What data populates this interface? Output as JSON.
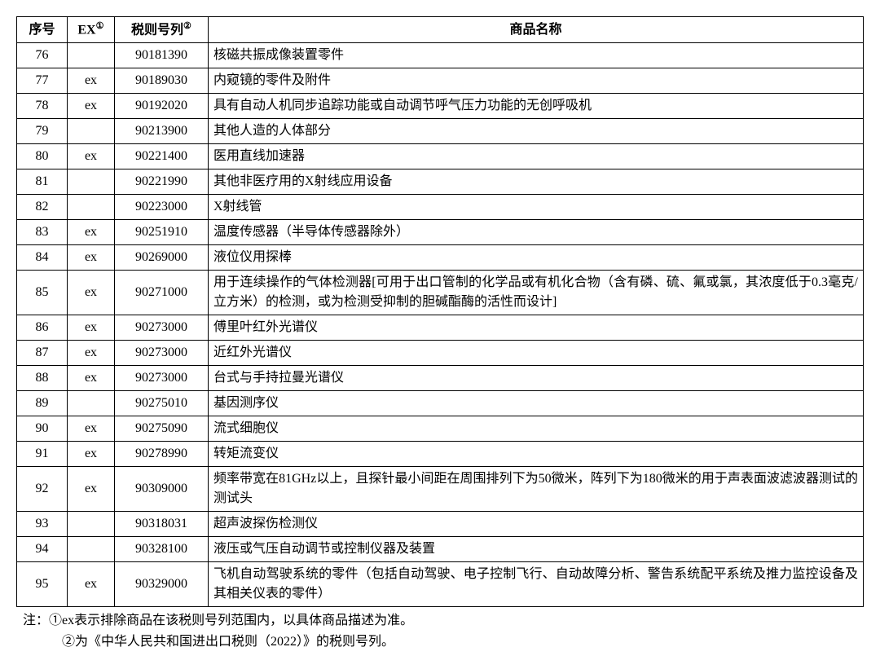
{
  "table": {
    "headers": {
      "seq": "序号",
      "ex": "EX",
      "ex_sup": "①",
      "code": "税则号列",
      "code_sup": "②",
      "name": "商品名称"
    },
    "columns": {
      "seq_width": 62,
      "ex_width": 58,
      "code_width": 115
    },
    "rows": [
      {
        "seq": "76",
        "ex": "",
        "code": "90181390",
        "name": "核磁共振成像装置零件"
      },
      {
        "seq": "77",
        "ex": "ex",
        "code": "90189030",
        "name": "内窥镜的零件及附件"
      },
      {
        "seq": "78",
        "ex": "ex",
        "code": "90192020",
        "name": "具有自动人机同步追踪功能或自动调节呼气压力功能的无创呼吸机"
      },
      {
        "seq": "79",
        "ex": "",
        "code": "90213900",
        "name": "其他人造的人体部分"
      },
      {
        "seq": "80",
        "ex": "ex",
        "code": "90221400",
        "name": "医用直线加速器"
      },
      {
        "seq": "81",
        "ex": "",
        "code": "90221990",
        "name": "其他非医疗用的X射线应用设备"
      },
      {
        "seq": "82",
        "ex": "",
        "code": "90223000",
        "name": "X射线管"
      },
      {
        "seq": "83",
        "ex": "ex",
        "code": "90251910",
        "name": "温度传感器（半导体传感器除外）"
      },
      {
        "seq": "84",
        "ex": "ex",
        "code": "90269000",
        "name": "液位仪用探棒"
      },
      {
        "seq": "85",
        "ex": "ex",
        "code": "90271000",
        "name": "用于连续操作的气体检测器[可用于出口管制的化学品或有机化合物（含有磷、硫、氟或氯，其浓度低于0.3毫克/立方米）的检测，或为检测受抑制的胆碱酯酶的活性而设计]"
      },
      {
        "seq": "86",
        "ex": "ex",
        "code": "90273000",
        "name": "傅里叶红外光谱仪"
      },
      {
        "seq": "87",
        "ex": "ex",
        "code": "90273000",
        "name": "近红外光谱仪"
      },
      {
        "seq": "88",
        "ex": "ex",
        "code": "90273000",
        "name": "台式与手持拉曼光谱仪"
      },
      {
        "seq": "89",
        "ex": "",
        "code": "90275010",
        "name": "基因测序仪"
      },
      {
        "seq": "90",
        "ex": "ex",
        "code": "90275090",
        "name": "流式细胞仪"
      },
      {
        "seq": "91",
        "ex": "ex",
        "code": "90278990",
        "name": "转矩流变仪"
      },
      {
        "seq": "92",
        "ex": "ex",
        "code": "90309000",
        "name": "频率带宽在81GHz以上，且探针最小间距在周围排列下为50微米，阵列下为180微米的用于声表面波滤波器测试的测试头"
      },
      {
        "seq": "93",
        "ex": "",
        "code": "90318031",
        "name": "超声波探伤检测仪"
      },
      {
        "seq": "94",
        "ex": "",
        "code": "90328100",
        "name": "液压或气压自动调节或控制仪器及装置"
      },
      {
        "seq": "95",
        "ex": "ex",
        "code": "90329000",
        "name": "飞机自动驾驶系统的零件（包括自动驾驶、电子控制飞行、自动故障分析、警告系统配平系统及推力监控设备及其相关仪表的零件）"
      }
    ]
  },
  "footnotes": {
    "prefix": "注：",
    "note1": "①ex表示排除商品在该税则号列范围内，以具体商品描述为准。",
    "note2": "②为《中华人民共和国进出口税则（2022）》的税则号列。"
  },
  "styling": {
    "border_color": "#000000",
    "background_color": "#ffffff",
    "text_color": "#000000",
    "font_size": 16,
    "font_family": "SimSun",
    "row_line_height": 1.5
  }
}
